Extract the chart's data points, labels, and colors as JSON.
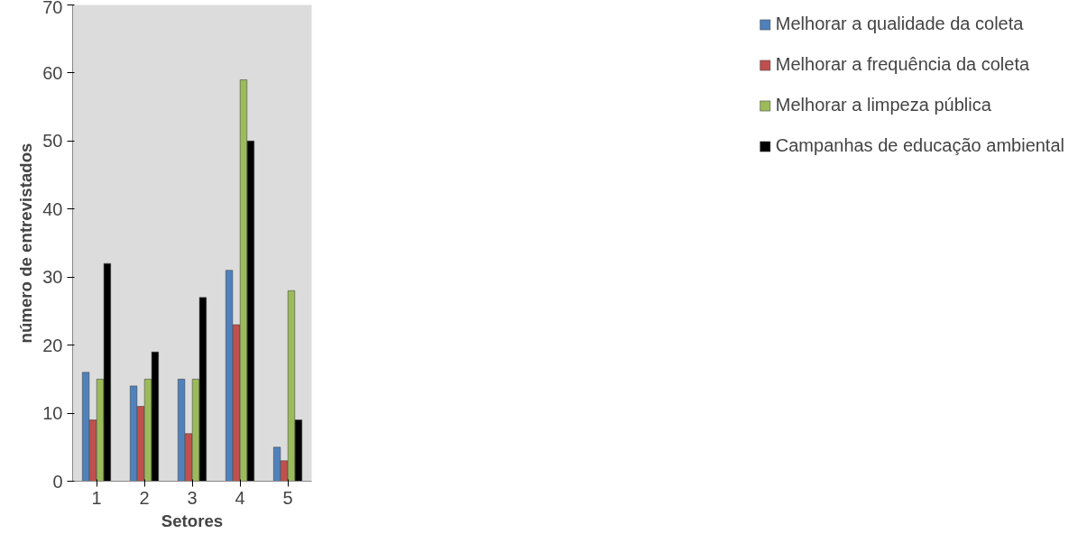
{
  "chart_data": {
    "type": "bar",
    "xlabel": "Setores",
    "ylabel": "número de entrevistados",
    "categories": [
      "1",
      "2",
      "3",
      "4",
      "5"
    ],
    "series": [
      {
        "name": "Melhorar a qualidade da coleta",
        "color": "#4f81bd",
        "values": [
          16,
          14,
          15,
          31,
          5
        ]
      },
      {
        "name": "Melhorar a frequência da coleta",
        "color": "#c0504d",
        "values": [
          9,
          11,
          7,
          23,
          3
        ]
      },
      {
        "name": "Melhorar a limpeza pública",
        "color": "#9bbb59",
        "values": [
          15,
          15,
          15,
          59,
          28
        ]
      },
      {
        "name": "Campanhas de educação ambiental",
        "color": "#000000",
        "values": [
          32,
          19,
          27,
          50,
          9
        ]
      }
    ],
    "ylim": [
      0,
      70
    ],
    "yticks": [
      0,
      10,
      20,
      30,
      40,
      50,
      60,
      70
    ],
    "grid": false,
    "legend": "right"
  }
}
